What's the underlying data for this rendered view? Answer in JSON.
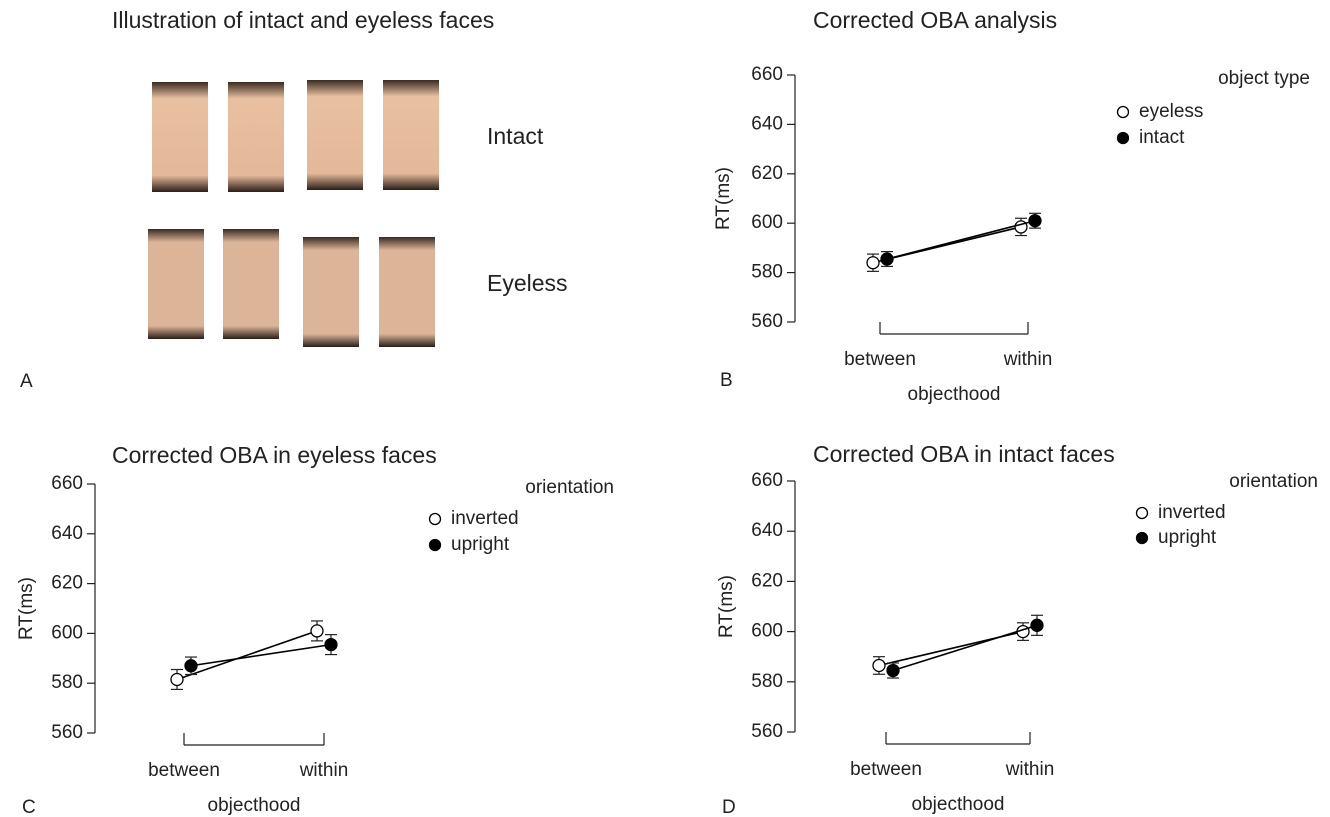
{
  "illustration": {
    "title": "Illustration of intact and eyeless faces",
    "rows": [
      "Intact",
      "Eyeless"
    ]
  },
  "panel_labels": [
    "A",
    "B",
    "C",
    "D"
  ],
  "chart_data": [
    {
      "type": "line",
      "title": "Corrected OBA analysis",
      "xlabel": "objecthood",
      "ylabel": "RT(ms)",
      "categories": [
        "between",
        "within"
      ],
      "legend_title": "object type",
      "ylim": [
        560,
        660
      ],
      "yticks": [
        560,
        580,
        600,
        620,
        640,
        660
      ],
      "series": [
        {
          "name": "eyeless",
          "color": "#000000",
          "marker_fill": "#ffffff",
          "values": [
            584,
            598.5
          ],
          "errors": [
            3.5,
            3.5
          ]
        },
        {
          "name": "intact",
          "color": "#000000",
          "marker_fill": "#000000",
          "values": [
            585.5,
            601
          ],
          "errors": [
            3,
            3
          ]
        }
      ]
    },
    {
      "type": "line",
      "title": "Corrected OBA in eyeless faces",
      "xlabel": "objecthood",
      "ylabel": "RT(ms)",
      "categories": [
        "between",
        "within"
      ],
      "legend_title": "orientation",
      "ylim": [
        560,
        660
      ],
      "yticks": [
        560,
        580,
        600,
        620,
        640,
        660
      ],
      "series": [
        {
          "name": "inverted",
          "color": "#000000",
          "marker_fill": "#ffffff",
          "values": [
            581.5,
            601
          ],
          "errors": [
            4,
            4
          ]
        },
        {
          "name": "upright",
          "color": "#000000",
          "marker_fill": "#000000",
          "values": [
            587,
            595.5
          ],
          "errors": [
            3.5,
            4
          ]
        }
      ]
    },
    {
      "type": "line",
      "title": "Corrected OBA in intact faces",
      "xlabel": "objecthood",
      "ylabel": "RT(ms)",
      "categories": [
        "between",
        "within"
      ],
      "legend_title": "orientation",
      "ylim": [
        560,
        660
      ],
      "yticks": [
        560,
        580,
        600,
        620,
        640,
        660
      ],
      "series": [
        {
          "name": "inverted",
          "color": "#000000",
          "marker_fill": "#ffffff",
          "values": [
            586.5,
            600
          ],
          "errors": [
            3.5,
            3.5
          ]
        },
        {
          "name": "upright",
          "color": "#000000",
          "marker_fill": "#000000",
          "values": [
            584.5,
            602.5
          ],
          "errors": [
            3,
            4
          ]
        }
      ]
    }
  ]
}
